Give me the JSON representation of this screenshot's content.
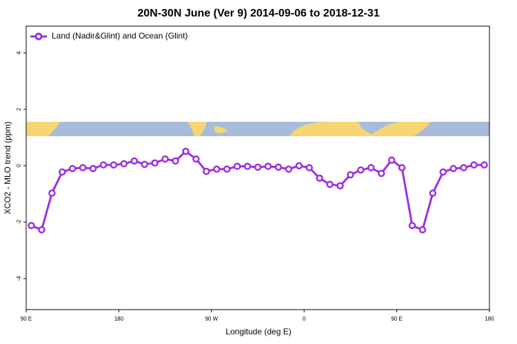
{
  "chart_data": {
    "type": "line",
    "title": "20N-30N June (Ver 9)   2014-09-06 to 2018-12-31",
    "x_label": "Longitude (deg E)",
    "y_label": "XCO2 - MLO trend (ppm)",
    "x": [
      95,
      105,
      115,
      125,
      135,
      145,
      155,
      165,
      175,
      185,
      195,
      205,
      215,
      225,
      235,
      245,
      255,
      265,
      275,
      285,
      295,
      305,
      315,
      325,
      335,
      345,
      355,
      365,
      375,
      385,
      395,
      405,
      415,
      425,
      435,
      445,
      455,
      465,
      475,
      485,
      495,
      505,
      515,
      525,
      535
    ],
    "series": [
      {
        "name": "Land (Nadir&Glint) and Ocean (Glint)",
        "color": "#9b30e0",
        "values": [
          -2.12,
          -2.27,
          -0.97,
          -0.22,
          -0.1,
          -0.07,
          -0.1,
          0.03,
          0.03,
          0.07,
          0.17,
          0.05,
          0.1,
          0.24,
          0.17,
          0.51,
          0.24,
          -0.2,
          -0.12,
          -0.12,
          -0.02,
          -0.02,
          -0.05,
          -0.02,
          -0.05,
          -0.12,
          0,
          -0.07,
          -0.44,
          -0.66,
          -0.71,
          -0.32,
          -0.15,
          -0.07,
          -0.27,
          0.2,
          -0.07,
          -2.12,
          -2.27,
          -0.97,
          -0.22,
          -0.1,
          -0.07,
          0.03,
          0.03
        ]
      }
    ],
    "xlim": [
      90,
      540
    ],
    "xticks": [
      {
        "value": 90,
        "label": "90 E"
      },
      180,
      {
        "value": 270,
        "label": "90 W"
      },
      {
        "value": 360,
        "label": "0"
      },
      {
        "value": 450,
        "label": "90 E"
      },
      {
        "value": 540,
        "label": "180"
      }
    ],
    "ylim": [
      -5.1,
      4.95
    ],
    "yticks": [
      -4,
      -2,
      0,
      2,
      4
    ],
    "legend": "top-left"
  }
}
